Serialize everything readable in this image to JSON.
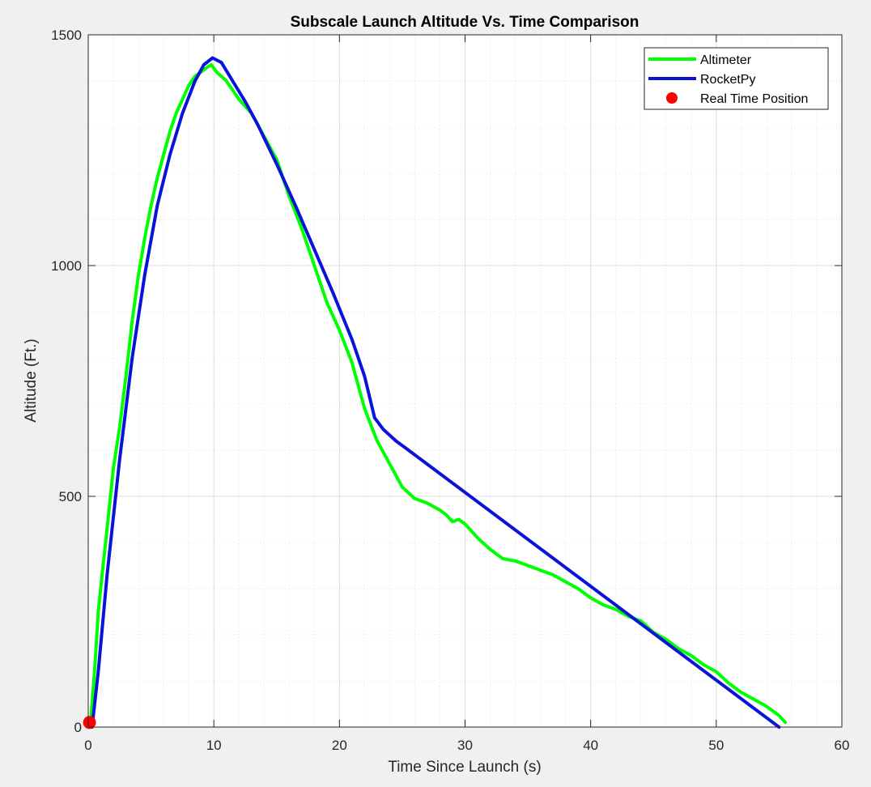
{
  "chart_data": {
    "type": "line",
    "title": "Subscale Launch Altitude Vs. Time Comparison",
    "xlabel": "Time Since Launch (s)",
    "ylabel": "Altitude (Ft.)",
    "xlim": [
      0,
      60
    ],
    "ylim": [
      0,
      1500
    ],
    "xticks": [
      0,
      10,
      20,
      30,
      40,
      50,
      60
    ],
    "yticks": [
      0,
      500,
      1000,
      1500
    ],
    "xtick_labels": [
      "0",
      "10",
      "20",
      "30",
      "40",
      "50",
      "60"
    ],
    "ytick_labels": [
      "0",
      "500",
      "1000",
      "1500"
    ],
    "grid": true,
    "minor_grid": true,
    "legend_position": "top-right",
    "series": [
      {
        "name": "Altimeter",
        "color": "#00ff00",
        "x": [
          0.2,
          0.5,
          0.8,
          1.1,
          1.5,
          2.0,
          2.5,
          3.0,
          3.5,
          4.0,
          4.5,
          5.0,
          5.5,
          6.0,
          6.5,
          7.0,
          7.5,
          8.0,
          8.5,
          9.0,
          9.5,
          9.8,
          10.2,
          11.0,
          12.0,
          13.0,
          14.0,
          15.0,
          16.0,
          17.0,
          18.0,
          19.0,
          20.0,
          21.0,
          22.0,
          23.0,
          24.0,
          25.0,
          26.0,
          27.0,
          28.0,
          28.5,
          29.0,
          29.5,
          30.0,
          31.0,
          32.0,
          33.0,
          34.0,
          35.0,
          36.0,
          37.0,
          38.0,
          39.0,
          40.0,
          41.0,
          42.0,
          43.0,
          44.0,
          45.0,
          46.0,
          47.0,
          48.0,
          49.0,
          50.0,
          51.0,
          52.0,
          53.0,
          54.0,
          55.0,
          55.5
        ],
        "y": [
          15,
          120,
          250,
          330,
          430,
          560,
          650,
          760,
          880,
          980,
          1060,
          1130,
          1190,
          1240,
          1290,
          1330,
          1360,
          1390,
          1410,
          1420,
          1430,
          1435,
          1420,
          1400,
          1360,
          1330,
          1280,
          1230,
          1150,
          1080,
          1000,
          920,
          860,
          790,
          690,
          620,
          570,
          520,
          495,
          485,
          470,
          460,
          445,
          450,
          440,
          410,
          385,
          365,
          360,
          350,
          340,
          330,
          315,
          300,
          280,
          265,
          255,
          240,
          230,
          205,
          190,
          170,
          155,
          135,
          120,
          95,
          75,
          60,
          45,
          25,
          10
        ]
      },
      {
        "name": "RocketPy",
        "color": "#0a14d9",
        "x": [
          0.3,
          0.8,
          1.5,
          2.5,
          3.5,
          4.5,
          5.5,
          6.5,
          7.5,
          8.5,
          9.2,
          9.9,
          10.6,
          11.5,
          12.5,
          13.5,
          15.0,
          16.5,
          18.0,
          19.5,
          21.0,
          22.0,
          22.8,
          23.5,
          24.5,
          25.5,
          55.0
        ],
        "y": [
          0,
          120,
          330,
          580,
          800,
          980,
          1130,
          1240,
          1330,
          1400,
          1435,
          1450,
          1440,
          1400,
          1355,
          1305,
          1220,
          1130,
          1035,
          940,
          840,
          760,
          670,
          645,
          620,
          600,
          0
        ]
      }
    ],
    "markers": [
      {
        "name": "Real Time Position",
        "color": "#ff0000",
        "x": 0.1,
        "y": 10
      }
    ]
  }
}
